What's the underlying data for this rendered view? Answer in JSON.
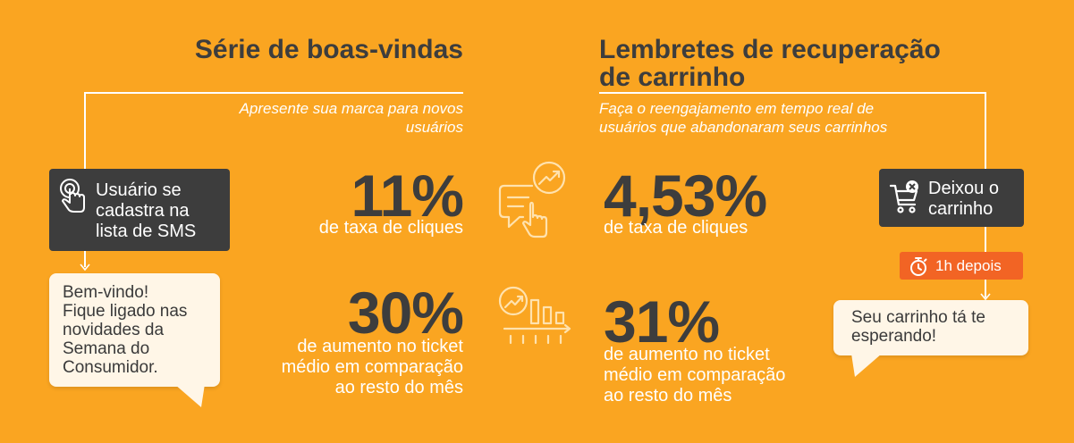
{
  "left": {
    "title": "Série de boas-vindas",
    "subtitle_line1": "Apresente sua marca para novos",
    "subtitle_line2": "usuários",
    "trigger": {
      "line1": "Usuário se",
      "line2": "cadastra na",
      "line3": "lista de SMS",
      "icon": "tap-finger-icon"
    },
    "message": {
      "line1": "Bem-vindo!",
      "line2": "Fique ligado nas",
      "line3": "novidades da",
      "line4": "Semana do",
      "line5": "Consumidor."
    },
    "stat1": {
      "value": "11%",
      "label": "de taxa de cliques"
    },
    "stat2": {
      "value": "30%",
      "label_line1": "de aumento no ticket",
      "label_line2": "médio em comparação",
      "label_line3": "ao resto do mês"
    }
  },
  "right": {
    "title_line1": "Lembretes de recuperação",
    "title_line2": "de carrinho",
    "subtitle_line1": "Faça o reengajamento em tempo real de",
    "subtitle_line2": "usuários que abandonaram seus carrinhos",
    "trigger": {
      "line1": "Deixou o",
      "line2": "carrinho",
      "icon": "cart-remove-icon"
    },
    "delay": {
      "label": "1h depois",
      "icon": "stopwatch-icon"
    },
    "message": {
      "line1": "Seu carrinho tá te",
      "line2": "esperando!"
    },
    "stat1": {
      "value": "4,53%",
      "label": "de taxa de cliques"
    },
    "stat2": {
      "value": "31%",
      "label_line1": "de aumento no ticket",
      "label_line2": "médio em comparação",
      "label_line3": "ao resto do mês"
    }
  },
  "icons": {
    "click_icon": "message-click-icon",
    "chart_icon": "growth-chart-icon"
  },
  "colors": {
    "background": "#FAA521",
    "dark": "#3D3D3D",
    "bubble": "#FFF6E7",
    "delay_badge": "#F26424",
    "icon_light": "#FFE2AE"
  }
}
